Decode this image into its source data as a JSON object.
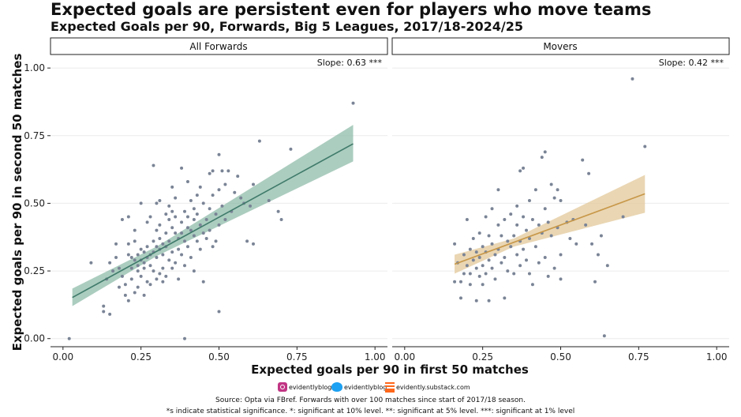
{
  "title": "Expected goals are persistent even for players who move teams",
  "subtitle": "Expected Goals per 90, Forwards, Big 5 Leagues, 2017/18-2024/25",
  "chart_data": {
    "type": "scatter",
    "xlabel": "Expected goals per 90 in first 50 matches",
    "ylabel": "Expected goals per 90 in second 50 matches",
    "xlim": [
      -0.04,
      1.04
    ],
    "ylim": [
      -0.03,
      1.05
    ],
    "x_ticks": [
      0.0,
      0.25,
      0.5,
      0.75,
      1.0
    ],
    "x_tick_labels": [
      "0.00",
      "0.25",
      "0.50",
      "0.75",
      "1.00"
    ],
    "y_ticks": [
      0.0,
      0.25,
      0.5,
      0.75,
      1.0
    ],
    "y_tick_labels": [
      "0.00",
      "0.25",
      "0.50",
      "0.75",
      "1.00"
    ],
    "point_color": "#7a8496",
    "panels": [
      {
        "label": "All Forwards",
        "slope_label": "Slope: 0.63 ***",
        "line_color": "#3f7a6a",
        "band_color": "#8fbcaa",
        "fit": {
          "x_start": 0.03,
          "x_end": 0.93,
          "y_start": 0.152,
          "y_end": 0.72
        },
        "band": [
          {
            "x": 0.03,
            "lo": 0.12,
            "hi": 0.185
          },
          {
            "x": 0.3,
            "lo": 0.305,
            "hi": 0.34
          },
          {
            "x": 0.93,
            "lo": 0.655,
            "hi": 0.79
          }
        ],
        "points": [
          [
            0.02,
            0.0
          ],
          [
            0.09,
            0.28
          ],
          [
            0.13,
            0.12
          ],
          [
            0.13,
            0.1
          ],
          [
            0.15,
            0.09
          ],
          [
            0.14,
            0.22
          ],
          [
            0.15,
            0.28
          ],
          [
            0.16,
            0.25
          ],
          [
            0.17,
            0.35
          ],
          [
            0.17,
            0.3
          ],
          [
            0.18,
            0.26
          ],
          [
            0.18,
            0.19
          ],
          [
            0.19,
            0.44
          ],
          [
            0.19,
            0.23
          ],
          [
            0.2,
            0.2
          ],
          [
            0.2,
            0.16
          ],
          [
            0.21,
            0.45
          ],
          [
            0.21,
            0.35
          ],
          [
            0.21,
            0.31
          ],
          [
            0.21,
            0.14
          ],
          [
            0.22,
            0.3
          ],
          [
            0.22,
            0.26
          ],
          [
            0.22,
            0.22
          ],
          [
            0.23,
            0.4
          ],
          [
            0.23,
            0.36
          ],
          [
            0.23,
            0.29
          ],
          [
            0.23,
            0.17
          ],
          [
            0.24,
            0.31
          ],
          [
            0.24,
            0.27
          ],
          [
            0.24,
            0.25
          ],
          [
            0.24,
            0.19
          ],
          [
            0.25,
            0.5
          ],
          [
            0.25,
            0.33
          ],
          [
            0.25,
            0.29
          ],
          [
            0.25,
            0.23
          ],
          [
            0.26,
            0.32
          ],
          [
            0.26,
            0.28
          ],
          [
            0.26,
            0.26
          ],
          [
            0.26,
            0.16
          ],
          [
            0.27,
            0.43
          ],
          [
            0.27,
            0.34
          ],
          [
            0.27,
            0.3
          ],
          [
            0.27,
            0.21
          ],
          [
            0.28,
            0.45
          ],
          [
            0.28,
            0.31
          ],
          [
            0.28,
            0.27
          ],
          [
            0.28,
            0.2
          ],
          [
            0.29,
            0.64
          ],
          [
            0.29,
            0.36
          ],
          [
            0.29,
            0.32
          ],
          [
            0.29,
            0.25
          ],
          [
            0.3,
            0.5
          ],
          [
            0.3,
            0.4
          ],
          [
            0.3,
            0.34
          ],
          [
            0.3,
            0.3
          ],
          [
            0.3,
            0.22
          ],
          [
            0.31,
            0.51
          ],
          [
            0.31,
            0.42
          ],
          [
            0.31,
            0.37
          ],
          [
            0.31,
            0.33
          ],
          [
            0.31,
            0.24
          ],
          [
            0.32,
            0.35
          ],
          [
            0.32,
            0.31
          ],
          [
            0.32,
            0.26
          ],
          [
            0.32,
            0.21
          ],
          [
            0.33,
            0.46
          ],
          [
            0.33,
            0.39
          ],
          [
            0.33,
            0.34
          ],
          [
            0.33,
            0.23
          ],
          [
            0.34,
            0.49
          ],
          [
            0.34,
            0.44
          ],
          [
            0.34,
            0.36
          ],
          [
            0.34,
            0.29
          ],
          [
            0.35,
            0.56
          ],
          [
            0.35,
            0.47
          ],
          [
            0.35,
            0.41
          ],
          [
            0.35,
            0.32
          ],
          [
            0.35,
            0.26
          ],
          [
            0.36,
            0.52
          ],
          [
            0.36,
            0.45
          ],
          [
            0.36,
            0.39
          ],
          [
            0.36,
            0.28
          ],
          [
            0.37,
            0.37
          ],
          [
            0.37,
            0.33
          ],
          [
            0.37,
            0.22
          ],
          [
            0.38,
            0.63
          ],
          [
            0.38,
            0.43
          ],
          [
            0.38,
            0.39
          ],
          [
            0.38,
            0.31
          ],
          [
            0.39,
            0.0
          ],
          [
            0.39,
            0.47
          ],
          [
            0.39,
            0.36
          ],
          [
            0.39,
            0.27
          ],
          [
            0.4,
            0.58
          ],
          [
            0.4,
            0.45
          ],
          [
            0.4,
            0.41
          ],
          [
            0.4,
            0.34
          ],
          [
            0.41,
            0.51
          ],
          [
            0.41,
            0.4
          ],
          [
            0.41,
            0.3
          ],
          [
            0.42,
            0.48
          ],
          [
            0.42,
            0.44
          ],
          [
            0.42,
            0.38
          ],
          [
            0.42,
            0.25
          ],
          [
            0.43,
            0.53
          ],
          [
            0.43,
            0.46
          ],
          [
            0.43,
            0.36
          ],
          [
            0.44,
            0.56
          ],
          [
            0.44,
            0.42
          ],
          [
            0.44,
            0.33
          ],
          [
            0.45,
            0.5
          ],
          [
            0.45,
            0.39
          ],
          [
            0.45,
            0.21
          ],
          [
            0.46,
            0.44
          ],
          [
            0.46,
            0.37
          ],
          [
            0.47,
            0.61
          ],
          [
            0.47,
            0.48
          ],
          [
            0.47,
            0.4
          ],
          [
            0.48,
            0.62
          ],
          [
            0.48,
            0.53
          ],
          [
            0.48,
            0.34
          ],
          [
            0.49,
            0.46
          ],
          [
            0.49,
            0.36
          ],
          [
            0.5,
            0.68
          ],
          [
            0.5,
            0.1
          ],
          [
            0.5,
            0.55
          ],
          [
            0.5,
            0.42
          ],
          [
            0.51,
            0.62
          ],
          [
            0.51,
            0.49
          ],
          [
            0.52,
            0.57
          ],
          [
            0.52,
            0.44
          ],
          [
            0.53,
            0.62
          ],
          [
            0.54,
            0.47
          ],
          [
            0.55,
            0.54
          ],
          [
            0.56,
            0.6
          ],
          [
            0.57,
            0.52
          ],
          [
            0.58,
            0.5
          ],
          [
            0.59,
            0.36
          ],
          [
            0.6,
            0.49
          ],
          [
            0.61,
            0.35
          ],
          [
            0.61,
            0.57
          ],
          [
            0.63,
            0.73
          ],
          [
            0.66,
            0.51
          ],
          [
            0.69,
            0.47
          ],
          [
            0.7,
            0.44
          ],
          [
            0.73,
            0.7
          ],
          [
            0.93,
            0.87
          ]
        ]
      },
      {
        "label": "Movers",
        "slope_label": "Slope: 0.42 ***",
        "line_color": "#c79748",
        "band_color": "#e3c899",
        "fit": {
          "x_start": 0.16,
          "x_end": 0.77,
          "y_start": 0.275,
          "y_end": 0.535
        },
        "band": [
          {
            "x": 0.16,
            "lo": 0.24,
            "hi": 0.31
          },
          {
            "x": 0.35,
            "lo": 0.34,
            "hi": 0.37
          },
          {
            "x": 0.77,
            "lo": 0.465,
            "hi": 0.605
          }
        ],
        "points": [
          [
            0.16,
            0.21
          ],
          [
            0.16,
            0.35
          ],
          [
            0.17,
            0.28
          ],
          [
            0.18,
            0.21
          ],
          [
            0.18,
            0.15
          ],
          [
            0.19,
            0.31
          ],
          [
            0.19,
            0.24
          ],
          [
            0.2,
            0.44
          ],
          [
            0.2,
            0.27
          ],
          [
            0.21,
            0.33
          ],
          [
            0.21,
            0.24
          ],
          [
            0.21,
            0.2
          ],
          [
            0.22,
            0.37
          ],
          [
            0.22,
            0.29
          ],
          [
            0.23,
            0.32
          ],
          [
            0.23,
            0.26
          ],
          [
            0.23,
            0.14
          ],
          [
            0.24,
            0.39
          ],
          [
            0.24,
            0.3
          ],
          [
            0.24,
            0.23
          ],
          [
            0.25,
            0.34
          ],
          [
            0.25,
            0.27
          ],
          [
            0.25,
            0.2
          ],
          [
            0.26,
            0.45
          ],
          [
            0.26,
            0.32
          ],
          [
            0.26,
            0.24
          ],
          [
            0.27,
            0.38
          ],
          [
            0.27,
            0.29
          ],
          [
            0.27,
            0.14
          ],
          [
            0.28,
            0.48
          ],
          [
            0.28,
            0.35
          ],
          [
            0.28,
            0.26
          ],
          [
            0.29,
            0.31
          ],
          [
            0.29,
            0.22
          ],
          [
            0.3,
            0.55
          ],
          [
            0.3,
            0.42
          ],
          [
            0.3,
            0.33
          ],
          [
            0.31,
            0.38
          ],
          [
            0.31,
            0.28
          ],
          [
            0.32,
            0.44
          ],
          [
            0.32,
            0.3
          ],
          [
            0.32,
            0.15
          ],
          [
            0.33,
            0.36
          ],
          [
            0.33,
            0.25
          ],
          [
            0.34,
            0.46
          ],
          [
            0.34,
            0.34
          ],
          [
            0.35,
            0.38
          ],
          [
            0.35,
            0.24
          ],
          [
            0.36,
            0.49
          ],
          [
            0.36,
            0.42
          ],
          [
            0.36,
            0.31
          ],
          [
            0.37,
            0.62
          ],
          [
            0.37,
            0.36
          ],
          [
            0.37,
            0.27
          ],
          [
            0.38,
            0.63
          ],
          [
            0.38,
            0.45
          ],
          [
            0.38,
            0.33
          ],
          [
            0.39,
            0.4
          ],
          [
            0.39,
            0.29
          ],
          [
            0.4,
            0.51
          ],
          [
            0.4,
            0.37
          ],
          [
            0.4,
            0.24
          ],
          [
            0.41,
            0.44
          ],
          [
            0.41,
            0.2
          ],
          [
            0.42,
            0.55
          ],
          [
            0.42,
            0.34
          ],
          [
            0.43,
            0.42
          ],
          [
            0.43,
            0.28
          ],
          [
            0.44,
            0.67
          ],
          [
            0.44,
            0.39
          ],
          [
            0.45,
            0.69
          ],
          [
            0.45,
            0.48
          ],
          [
            0.45,
            0.3
          ],
          [
            0.46,
            0.43
          ],
          [
            0.46,
            0.23
          ],
          [
            0.47,
            0.57
          ],
          [
            0.47,
            0.38
          ],
          [
            0.48,
            0.52
          ],
          [
            0.48,
            0.26
          ],
          [
            0.49,
            0.55
          ],
          [
            0.49,
            0.41
          ],
          [
            0.5,
            0.51
          ],
          [
            0.5,
            0.31
          ],
          [
            0.5,
            0.22
          ],
          [
            0.52,
            0.43
          ],
          [
            0.53,
            0.37
          ],
          [
            0.54,
            0.44
          ],
          [
            0.55,
            0.35
          ],
          [
            0.57,
            0.66
          ],
          [
            0.58,
            0.42
          ],
          [
            0.59,
            0.61
          ],
          [
            0.6,
            0.35
          ],
          [
            0.61,
            0.21
          ],
          [
            0.62,
            0.31
          ],
          [
            0.63,
            0.38
          ],
          [
            0.64,
            0.01
          ],
          [
            0.65,
            0.27
          ],
          [
            0.7,
            0.45
          ],
          [
            0.73,
            0.96
          ],
          [
            0.77,
            0.71
          ]
        ]
      }
    ]
  },
  "social": {
    "instagram": "evidentlyblog",
    "twitter": "evidentlyblog",
    "substack": "evidently.substack.com"
  },
  "source": "Source: Opta via FBref. Forwards with over 100 matches since start of 2017/18 season.",
  "note": "*s indicate statistical significance. *: significant at 10% level. **: significant at 5% level. ***: significant at 1% level"
}
